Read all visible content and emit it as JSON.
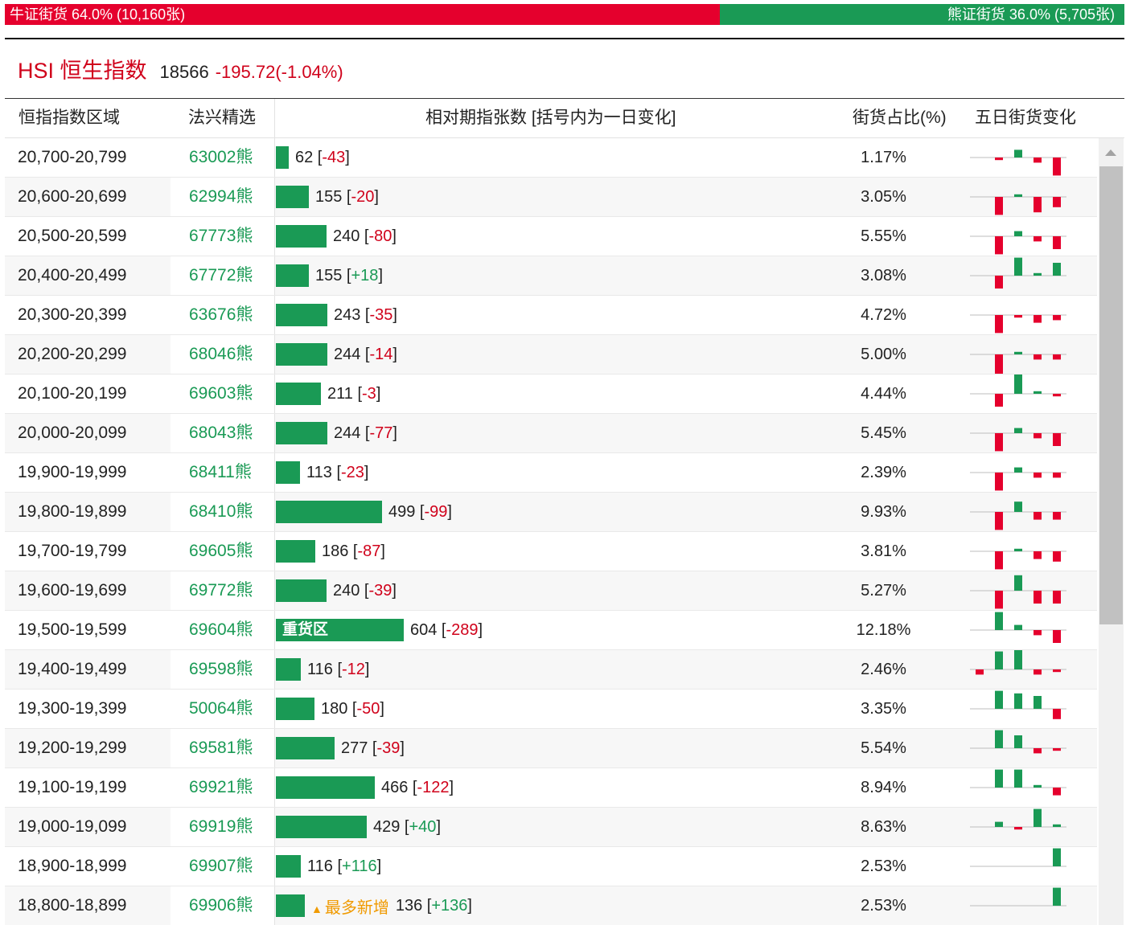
{
  "summary": {
    "bull_label": "牛证街货 64.0% (10,160张)",
    "bear_label": "熊证街货 36.0% (5,705张)",
    "bull_pct": 64.0
  },
  "index": {
    "name": "HSI 恒生指数",
    "value": "18566",
    "change": "-195.72(-1.04%)"
  },
  "headers": {
    "range": "恒指指数区域",
    "code": "法兴精选",
    "count": "相对期指张数 [括号内为一日变化]",
    "pct": "街货占比(%)",
    "five_day": "五日街货变化"
  },
  "colors": {
    "red": "#e5002d",
    "green": "#1a9a55",
    "tag": "#f09a00"
  },
  "rows": [
    {
      "range": "20,700-20,799",
      "code": "63002熊",
      "count": 62,
      "change": "-43",
      "pct": "1.17%",
      "spark": [
        0,
        -1,
        3,
        -2,
        -7
      ]
    },
    {
      "range": "20,600-20,699",
      "code": "62994熊",
      "count": 155,
      "change": "-20",
      "pct": "3.05%",
      "spark": [
        0,
        -7,
        1,
        -6,
        -4
      ]
    },
    {
      "range": "20,500-20,599",
      "code": "67773熊",
      "count": 240,
      "change": "-80",
      "pct": "5.55%",
      "spark": [
        0,
        -7,
        2,
        -2,
        -5
      ]
    },
    {
      "range": "20,400-20,499",
      "code": "67772熊",
      "count": 155,
      "change": "+18",
      "pct": "3.08%",
      "spark": [
        0,
        -5,
        7,
        1,
        5
      ]
    },
    {
      "range": "20,300-20,399",
      "code": "63676熊",
      "count": 243,
      "change": "-35",
      "pct": "4.72%",
      "spark": [
        0,
        -7,
        -1,
        -3,
        -2
      ]
    },
    {
      "range": "20,200-20,299",
      "code": "68046熊",
      "count": 244,
      "change": "-14",
      "pct": "5.00%",
      "spark": [
        0,
        -8,
        1,
        -2,
        -2
      ]
    },
    {
      "range": "20,100-20,199",
      "code": "69603熊",
      "count": 211,
      "change": "-3",
      "pct": "4.44%",
      "spark": [
        0,
        -5,
        8,
        1,
        -1
      ]
    },
    {
      "range": "20,000-20,099",
      "code": "68043熊",
      "count": 244,
      "change": "-77",
      "pct": "5.45%",
      "spark": [
        0,
        -7,
        2,
        -2,
        -5
      ]
    },
    {
      "range": "19,900-19,999",
      "code": "68411熊",
      "count": 113,
      "change": "-23",
      "pct": "2.39%",
      "spark": [
        0,
        -7,
        2,
        -2,
        -2
      ]
    },
    {
      "range": "19,800-19,899",
      "code": "68410熊",
      "count": 499,
      "change": "-99",
      "pct": "9.93%",
      "spark": [
        0,
        -7,
        4,
        -3,
        -3
      ]
    },
    {
      "range": "19,700-19,799",
      "code": "69605熊",
      "count": 186,
      "change": "-87",
      "pct": "3.81%",
      "spark": [
        0,
        -7,
        1,
        -3,
        -4
      ]
    },
    {
      "range": "19,600-19,699",
      "code": "69772熊",
      "count": 240,
      "change": "-39",
      "pct": "5.27%",
      "spark": [
        0,
        -7,
        6,
        -5,
        -5
      ]
    },
    {
      "range": "19,500-19,599",
      "code": "69604熊",
      "count": 604,
      "change": "-289",
      "pct": "12.18%",
      "heavy": "重货区",
      "spark": [
        0,
        7,
        2,
        -2,
        -5
      ]
    },
    {
      "range": "19,400-19,499",
      "code": "69598熊",
      "count": 116,
      "change": "-12",
      "pct": "2.46%",
      "spark": [
        -2,
        7,
        8,
        -2,
        -1
      ]
    },
    {
      "range": "19,300-19,399",
      "code": "50064熊",
      "count": 180,
      "change": "-50",
      "pct": "3.35%",
      "spark": [
        0,
        7,
        6,
        5,
        -4
      ]
    },
    {
      "range": "19,200-19,299",
      "code": "69581熊",
      "count": 277,
      "change": "-39",
      "pct": "5.54%",
      "spark": [
        0,
        7,
        5,
        -2,
        -1
      ]
    },
    {
      "range": "19,100-19,199",
      "code": "69921熊",
      "count": 466,
      "change": "-122",
      "pct": "8.94%",
      "spark": [
        0,
        7,
        7,
        1,
        -3
      ]
    },
    {
      "range": "19,000-19,099",
      "code": "69919熊",
      "count": 429,
      "change": "+40",
      "pct": "8.63%",
      "spark": [
        0,
        2,
        -1,
        7,
        1
      ]
    },
    {
      "range": "18,900-18,999",
      "code": "69907熊",
      "count": 116,
      "change": "+116",
      "pct": "2.53%",
      "spark": [
        0,
        0,
        0,
        0,
        7
      ]
    },
    {
      "range": "18,800-18,899",
      "code": "69906熊",
      "count": 136,
      "change": "+136",
      "pct": "2.53%",
      "tag": "最多新增",
      "spark": [
        0,
        0,
        0,
        0,
        7
      ]
    }
  ]
}
